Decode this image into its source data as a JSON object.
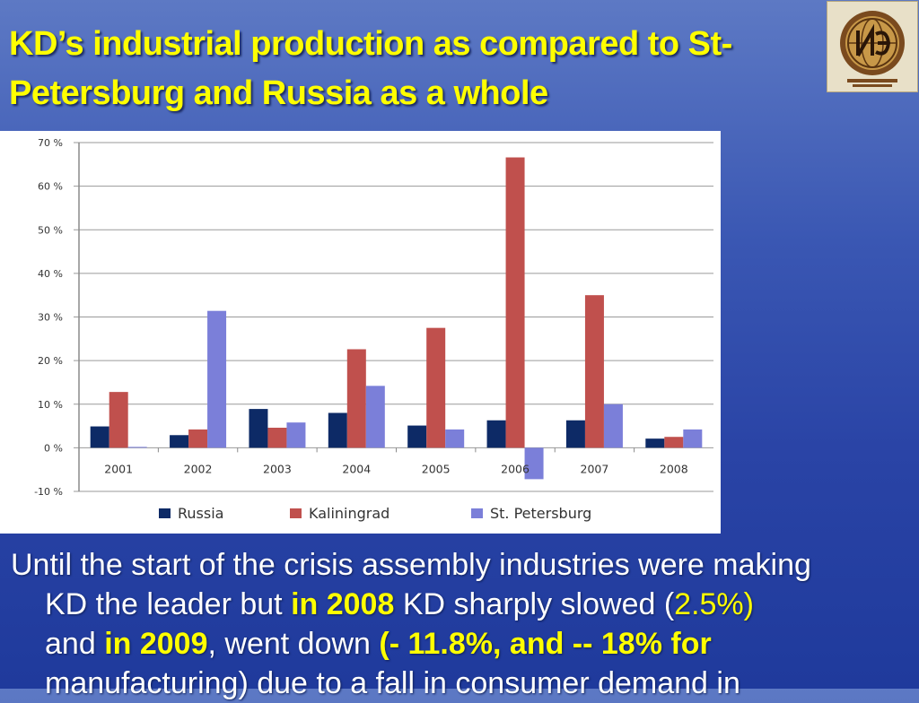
{
  "slide": {
    "title": "KD’s industrial production as compared to St-Petersburg and Russia as a whole"
  },
  "colors": {
    "title": "#ffff00",
    "russia": "#0d2a66",
    "kaliningrad": "#c0504d",
    "st_petersburg": "#7b7fd9"
  },
  "body": {
    "p1": "Until the start of the crisis assembly industries were making",
    "p2a": "KD the leader but ",
    "p2b": "in 2008",
    "p2c": " KD sharply slowed (",
    "p2d": "2.5%)",
    "p3a": "and ",
    "p3b": "in 2009",
    "p3c": ", went down ",
    "p3d": "(- 11.8%, and  -- 18% for",
    "p4": "manufacturing) due to a fall in consumer demand in"
  },
  "chart_data": {
    "type": "bar",
    "categories": [
      "2001",
      "2002",
      "2003",
      "2004",
      "2005",
      "2006",
      "2007",
      "2008"
    ],
    "series": [
      {
        "name": "Russia",
        "values": [
          4.9,
          2.9,
          8.9,
          8.0,
          5.1,
          6.3,
          6.3,
          2.1
        ]
      },
      {
        "name": "Kaliningrad",
        "values": [
          12.8,
          4.2,
          4.6,
          22.6,
          27.5,
          66.6,
          35.0,
          2.5
        ]
      },
      {
        "name": "St. Petersburg",
        "values": [
          0.2,
          31.4,
          5.8,
          14.2,
          4.2,
          -7.2,
          10.0,
          4.2
        ]
      }
    ],
    "yticks": [
      "70 %",
      "60 %",
      "50 %",
      "40 %",
      "30 %",
      "20 %",
      "10 %",
      "0 %",
      "-10 %"
    ],
    "ylim": [
      -10,
      70
    ],
    "grid": true,
    "legend": "bottom"
  }
}
